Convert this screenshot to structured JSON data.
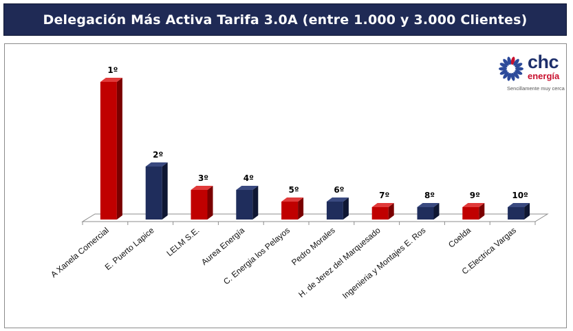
{
  "header": {
    "title": "Delegación Más Activa Tarifa 3.0A (entre 1.000 y 3.000 Clientes)"
  },
  "logo": {
    "brand": "chc",
    "sub": "energía",
    "tagline": "Sencillamente muy cerca"
  },
  "colors": {
    "red": "#c00000",
    "blue": "#1f2d5c",
    "title_bg": "#1f2a55"
  },
  "chart_data": {
    "type": "bar",
    "categories": [
      "A Xanela Comercial",
      "E. Puerto Lapice",
      "LELM S.E.",
      "Aurea Energía",
      "C. Energia los Pelayos",
      "Pedro Morales",
      "H. de Jerez del Marquesado",
      "Ingenieria y Montajes E. Ros",
      "Coelda",
      "C.Electrica Vargas"
    ],
    "values": [
      200,
      77,
      43,
      43,
      26,
      26,
      18,
      18,
      18,
      18
    ],
    "rank_labels": [
      "1º",
      "2º",
      "3º",
      "4º",
      "5º",
      "6º",
      "7º",
      "8º",
      "9º",
      "10º"
    ],
    "bar_colors": [
      "red",
      "blue",
      "red",
      "blue",
      "red",
      "blue",
      "red",
      "blue",
      "red",
      "blue"
    ],
    "style": "3d-column",
    "grid": false,
    "legend": "none"
  }
}
